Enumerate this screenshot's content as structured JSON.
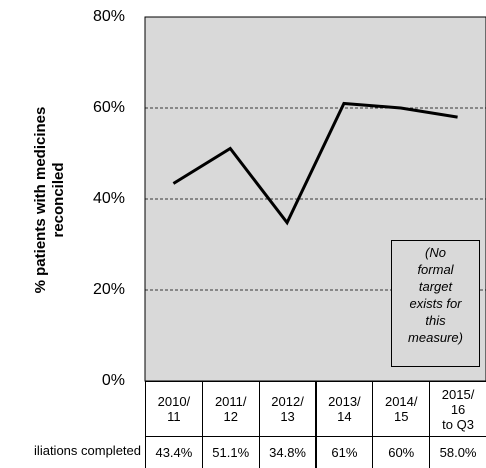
{
  "chart_data": {
    "type": "line",
    "y_axis_label": "% patients with medicines\nreconciled",
    "categories": [
      "2010/\n11",
      "2011/\n12",
      "2012/\n13",
      "2013/\n14",
      "2014/\n15",
      "2015/\n16\nto Q3"
    ],
    "series": [
      {
        "name": "iliations completed",
        "color": "#000000",
        "values": [
          43.4,
          51.1,
          34.8,
          61,
          60,
          58.0
        ],
        "value_labels": [
          "43.4%",
          "51.1%",
          "34.8%",
          "61%",
          "60%",
          "58.0%"
        ]
      }
    ],
    "ylim": [
      0,
      80
    ],
    "yticks": [
      {
        "value": 0,
        "label": "0%"
      },
      {
        "value": 20,
        "label": "20%"
      },
      {
        "value": 40,
        "label": "40%"
      },
      {
        "value": 60,
        "label": "60%"
      },
      {
        "value": 80,
        "label": "80%"
      }
    ],
    "grid": true,
    "annotation": "(No\nformal\ntarget\nexists for\nthis\nmeasure)"
  }
}
